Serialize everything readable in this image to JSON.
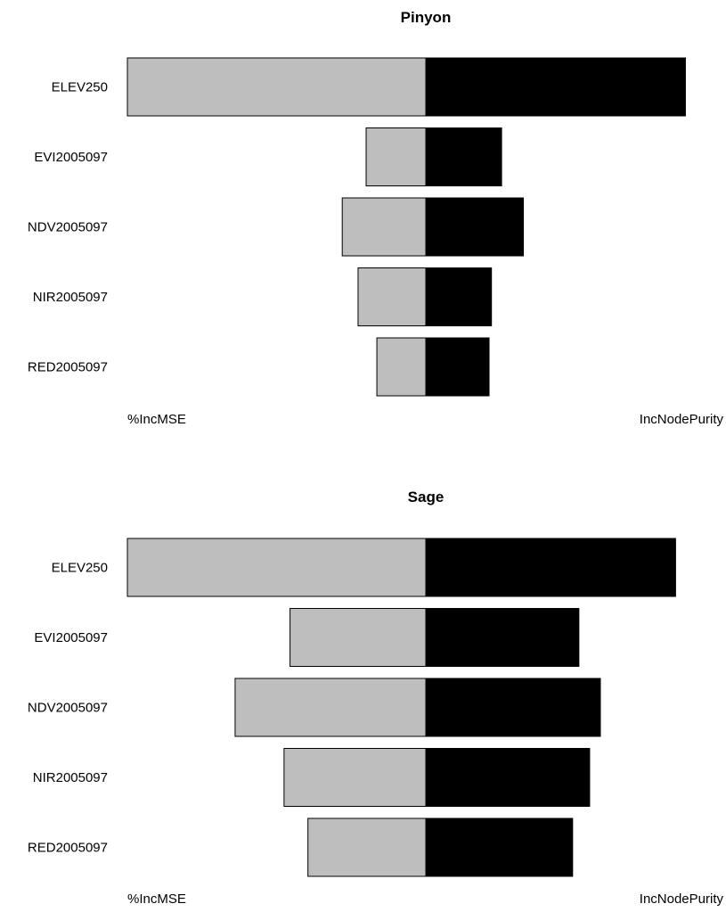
{
  "chart_data": [
    {
      "type": "bar",
      "orientation": "horizontal-diverging",
      "title": "Pinyon",
      "left_label": "%IncMSE",
      "right_label": "IncNodePurity",
      "categories": [
        "ELEV250",
        "EVI2005097",
        "NDV2005097",
        "NIR2005097",
        "RED2005097"
      ],
      "series": [
        {
          "name": "%IncMSE",
          "values": [
            1.0,
            0.2,
            0.28,
            0.227,
            0.164
          ]
        },
        {
          "name": "IncNodePurity",
          "values": [
            0.87,
            0.254,
            0.327,
            0.22,
            0.212
          ]
        }
      ],
      "xlim": [
        -1,
        1
      ],
      "colors": {
        "left": "#bebebe",
        "right": "#000000",
        "border": "#000000"
      }
    },
    {
      "type": "bar",
      "orientation": "horizontal-diverging",
      "title": "Sage",
      "left_label": "%IncMSE",
      "right_label": "IncNodePurity",
      "categories": [
        "ELEV250",
        "EVI2005097",
        "NDV2005097",
        "NIR2005097",
        "RED2005097"
      ],
      "series": [
        {
          "name": "%IncMSE",
          "values": [
            1.0,
            0.455,
            0.639,
            0.475,
            0.395
          ]
        },
        {
          "name": "IncNodePurity",
          "values": [
            0.837,
            0.513,
            0.585,
            0.549,
            0.492
          ]
        }
      ],
      "xlim": [
        -1,
        1
      ],
      "colors": {
        "left": "#bebebe",
        "right": "#000000",
        "border": "#000000"
      }
    }
  ]
}
